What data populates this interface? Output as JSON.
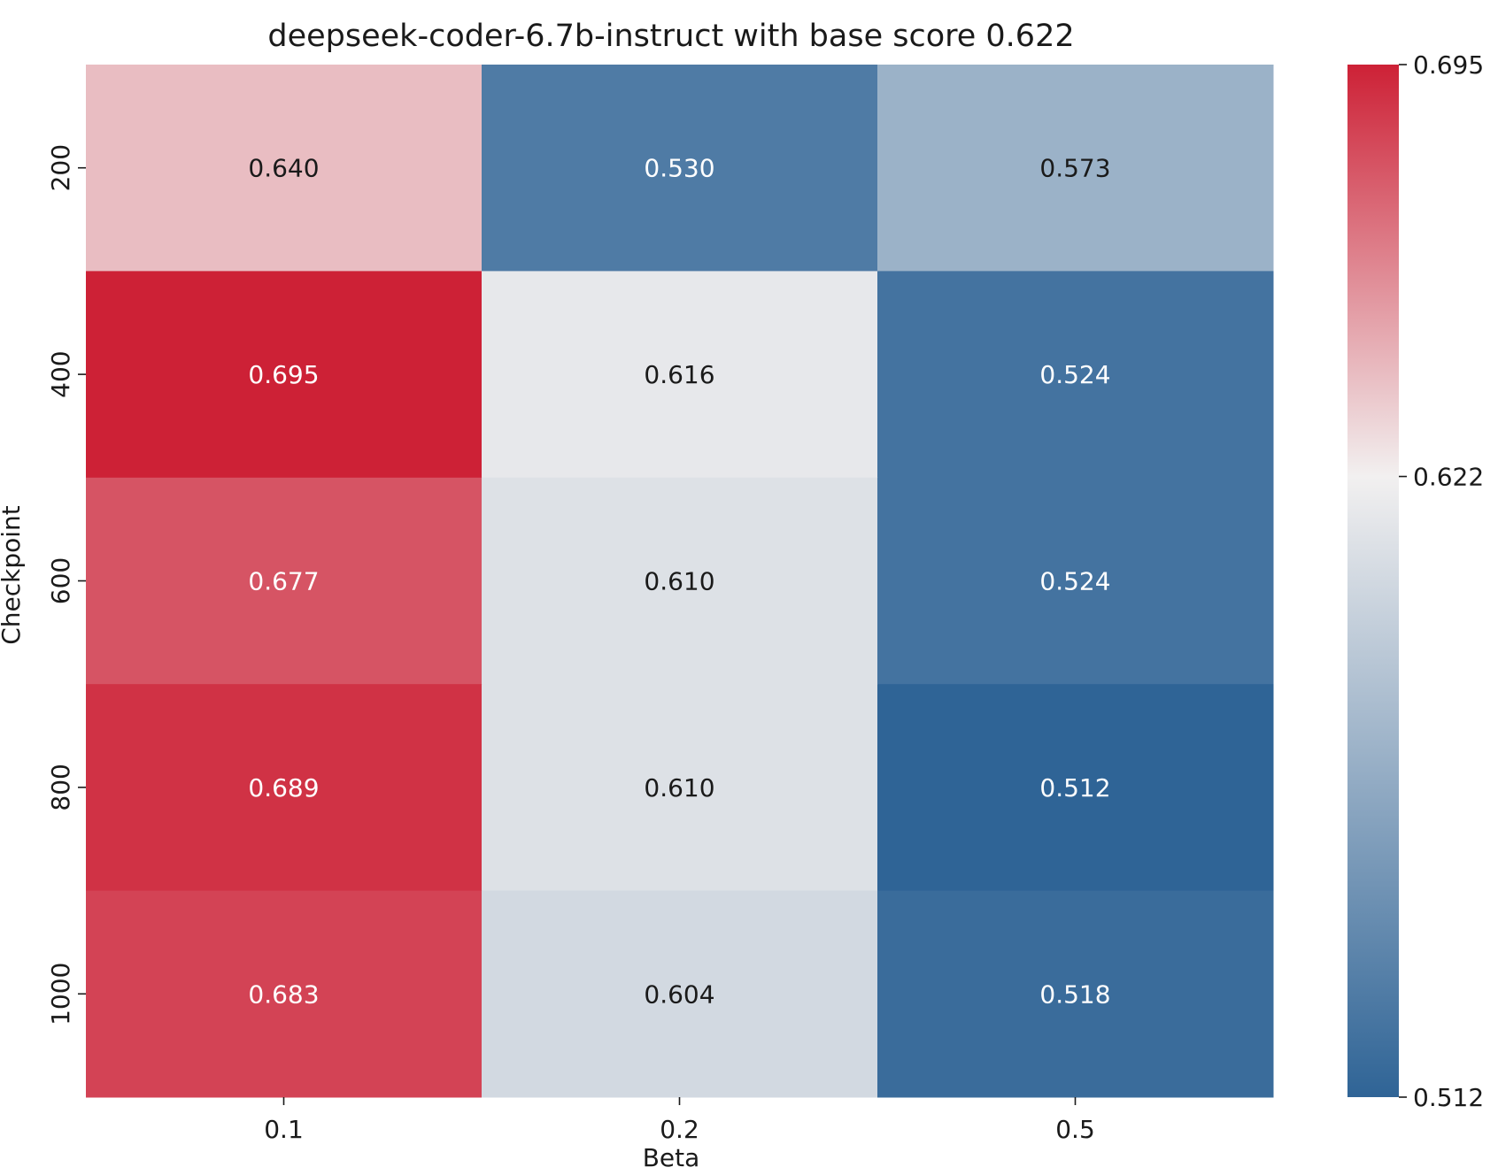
{
  "chart_data": {
    "type": "heatmap",
    "title": "deepseek-coder-6.7b-instruct with base score 0.622",
    "xlabel": "Beta",
    "ylabel": "Checkpoint",
    "x_categories": [
      "0.1",
      "0.2",
      "0.5"
    ],
    "y_categories": [
      "200",
      "400",
      "600",
      "800",
      "1000"
    ],
    "values": [
      [
        0.64,
        0.53,
        0.573
      ],
      [
        0.695,
        0.616,
        0.524
      ],
      [
        0.677,
        0.61,
        0.524
      ],
      [
        0.689,
        0.61,
        0.512
      ],
      [
        0.683,
        0.604,
        0.518
      ]
    ],
    "cell_labels": [
      [
        "0.640",
        "0.530",
        "0.573"
      ],
      [
        "0.695",
        "0.616",
        "0.524"
      ],
      [
        "0.677",
        "0.610",
        "0.524"
      ],
      [
        "0.689",
        "0.610",
        "0.512"
      ],
      [
        "0.683",
        "0.604",
        "0.518"
      ]
    ],
    "colorbar": {
      "min": 0.512,
      "center": 0.622,
      "max": 0.695,
      "tick_labels": [
        "0.695",
        "0.622",
        "0.512"
      ],
      "colors": {
        "low": "#2f6496",
        "mid": "#f2f0f0",
        "high": "#cd2136"
      }
    }
  }
}
